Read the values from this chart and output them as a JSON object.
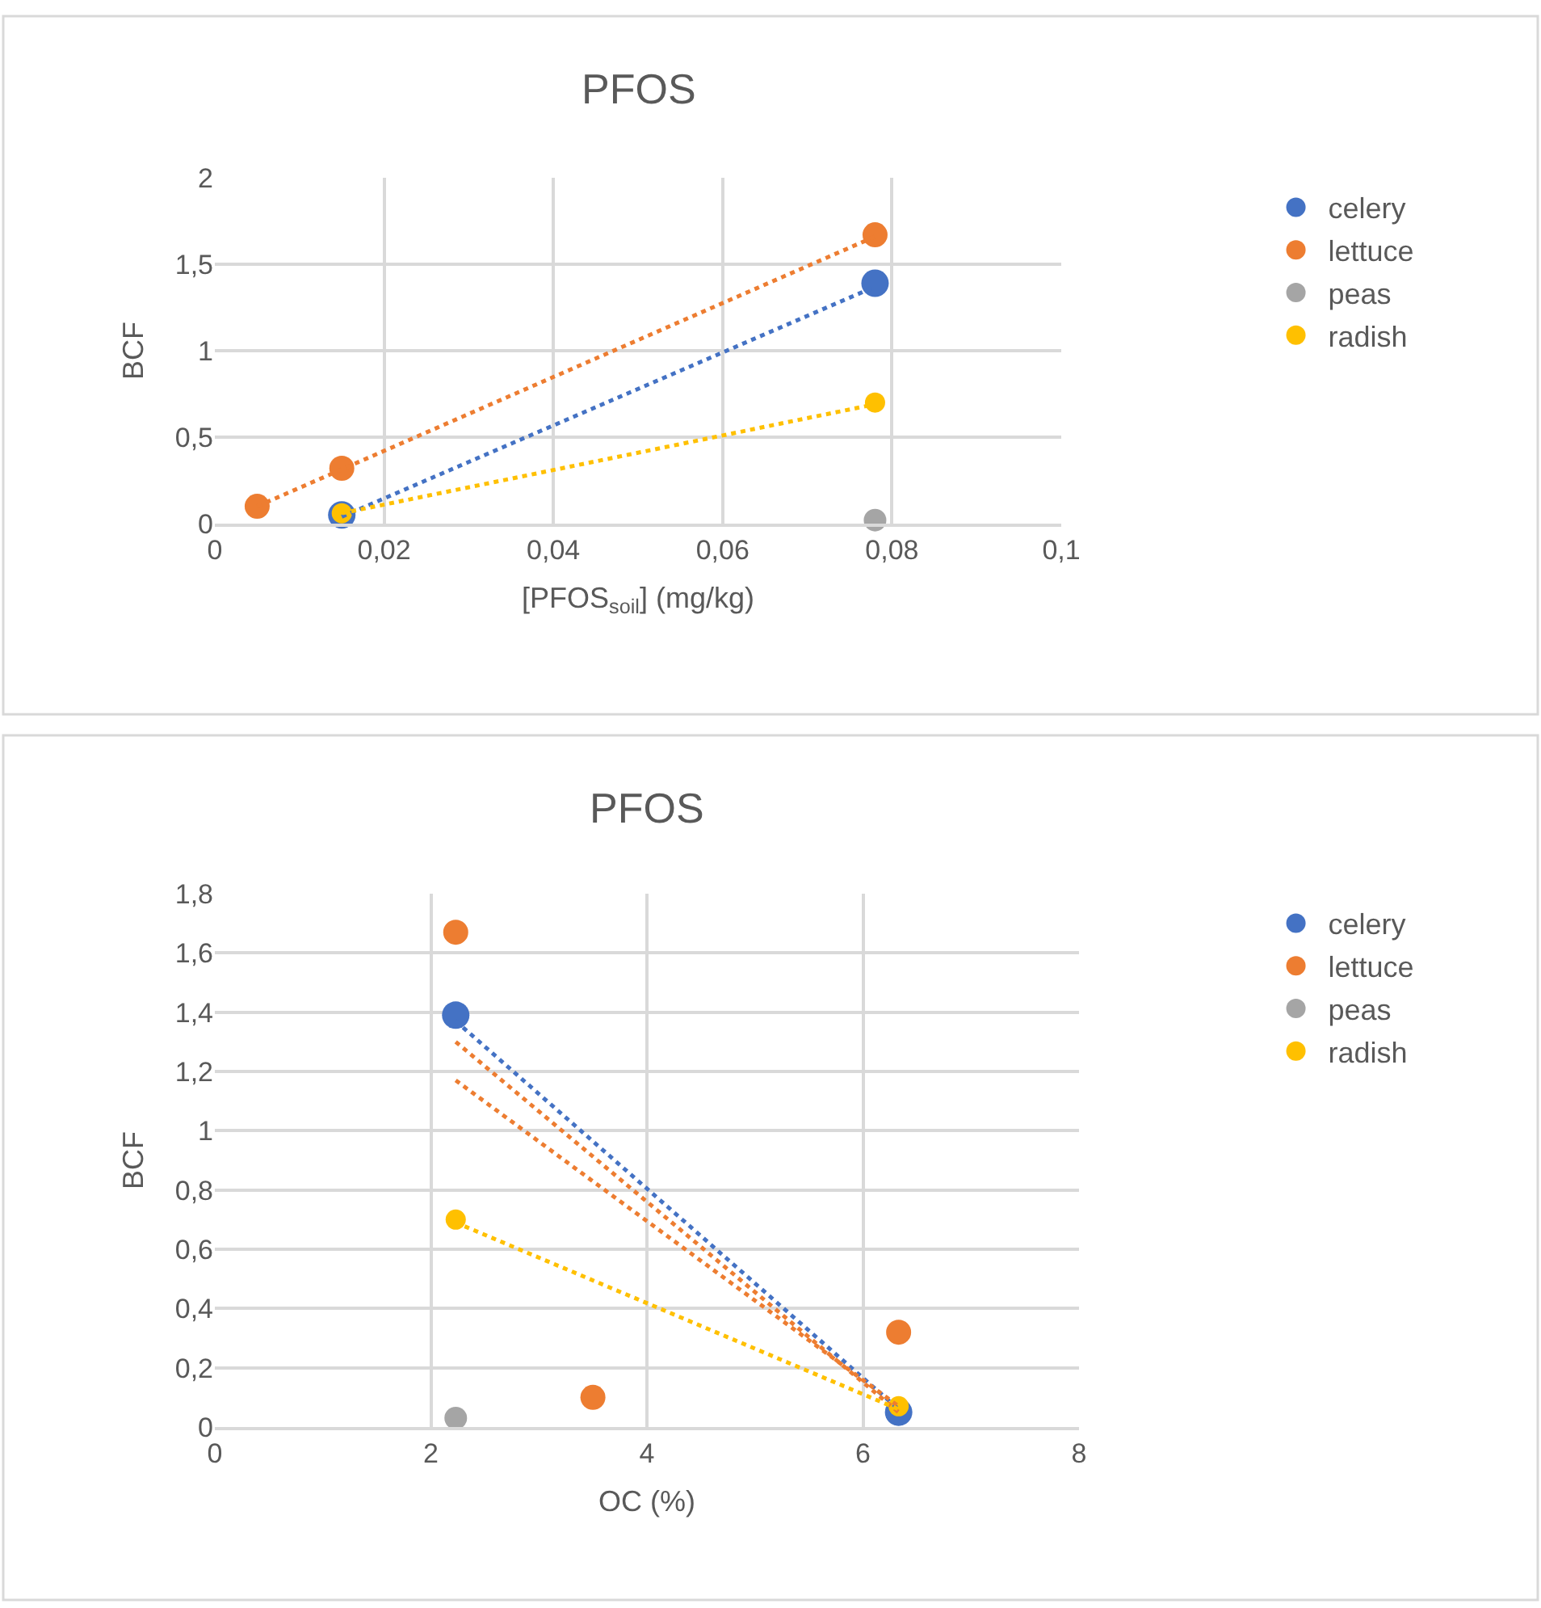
{
  "chart_data": [
    {
      "type": "scatter",
      "title": "PFOS",
      "xlabel": "[PFOS$_{soil}$] (mg/kg)",
      "ylabel": "BCF",
      "xlim": [
        0,
        0.1
      ],
      "ylim": [
        0,
        2
      ],
      "xticks": [
        0,
        {
          "value": 0.02,
          "label": "0,02"
        },
        {
          "value": 0.04,
          "label": "0,04"
        },
        {
          "value": 0.06,
          "label": "0,06"
        },
        {
          "value": 0.08,
          "label": "0,08"
        },
        {
          "value": 0.1,
          "label": "0,1"
        }
      ],
      "yticks": [
        0,
        {
          "value": 0.5,
          "label": "0,5"
        },
        1,
        {
          "value": 1.5,
          "label": "1,5"
        },
        2
      ],
      "grid": true,
      "legend": "right",
      "marker": "circle",
      "series": [
        {
          "name": "celery",
          "color": "#4472c4",
          "x": [
            0.015,
            0.078
          ],
          "values": [
            0.05,
            1.39
          ]
        },
        {
          "name": "lettuce",
          "color": "#ed7d31",
          "x": [
            0.005,
            0.015,
            0.078
          ],
          "values": [
            0.1,
            0.32,
            1.67
          ]
        },
        {
          "name": "peas",
          "color": "#a5a5a5",
          "x": [
            0.078
          ],
          "values": [
            0.02
          ]
        },
        {
          "name": "radish",
          "color": "#ffc000",
          "x": [
            0.015,
            0.078
          ],
          "values": [
            0.06,
            0.7
          ]
        },
        {
          "type": "line",
          "color": "#4472c4",
          "line_style": "dotted",
          "marker": "none",
          "x": [
            0.015,
            0.078
          ],
          "values": [
            0.04,
            1.37
          ]
        },
        {
          "type": "line",
          "color": "#ed7d31",
          "line_style": "dotted",
          "marker": "none",
          "x": [
            0.005,
            0.078
          ],
          "values": [
            0.1,
            1.66
          ]
        },
        {
          "type": "line",
          "color": "#ffc000",
          "line_style": "dotted",
          "marker": "none",
          "x": [
            0.015,
            0.078
          ],
          "values": [
            0.06,
            0.69
          ]
        }
      ]
    },
    {
      "type": "scatter",
      "title": "PFOS",
      "xlabel": "OC (%)",
      "ylabel": "BCF",
      "xlim": [
        0,
        8
      ],
      "ylim": [
        0,
        1.8
      ],
      "xticks": [
        0,
        2,
        4,
        6,
        8
      ],
      "yticks": [
        0,
        {
          "value": 0.2,
          "label": "0,2"
        },
        {
          "value": 0.4,
          "label": "0,4"
        },
        {
          "value": 0.6,
          "label": "0,6"
        },
        {
          "value": 0.8,
          "label": "0,8"
        },
        1,
        {
          "value": 1.2,
          "label": "1,2"
        },
        {
          "value": 1.4,
          "label": "1,4"
        },
        {
          "value": 1.6,
          "label": "1,6"
        },
        {
          "value": 1.8,
          "label": "1,8"
        }
      ],
      "grid": true,
      "legend": "right",
      "marker": "circle",
      "series": [
        {
          "name": "celery",
          "color": "#4472c4",
          "x": [
            2.23,
            6.33
          ],
          "values": [
            1.39,
            0.05
          ]
        },
        {
          "name": "lettuce",
          "color": "#ed7d31",
          "x": [
            2.23,
            3.5,
            6.33
          ],
          "values": [
            1.67,
            0.1,
            0.32
          ]
        },
        {
          "name": "peas",
          "color": "#a5a5a5",
          "x": [
            2.23
          ],
          "values": [
            0.03
          ]
        },
        {
          "name": "radish",
          "color": "#ffc000",
          "x": [
            2.23,
            6.33
          ],
          "values": [
            0.7,
            0.07
          ]
        },
        {
          "type": "line",
          "color": "#4472c4",
          "line_style": "dotted",
          "marker": "none",
          "x": [
            2.23,
            6.33
          ],
          "values": [
            1.37,
            0.06
          ]
        },
        {
          "type": "line",
          "color": "#ed7d31",
          "line_style": "dotted",
          "marker": "none",
          "x": [
            2.23,
            6.33
          ],
          "values": [
            1.3,
            0.05
          ]
        },
        {
          "type": "line",
          "color": "#ed7d31",
          "line_style": "dotted",
          "marker": "none",
          "x": [
            2.23,
            6.33
          ],
          "values": [
            1.17,
            0.07
          ]
        },
        {
          "type": "line",
          "color": "#ffc000",
          "line_style": "dotted",
          "marker": "none",
          "x": [
            2.23,
            6.33
          ],
          "values": [
            0.69,
            0.06
          ]
        }
      ]
    }
  ]
}
